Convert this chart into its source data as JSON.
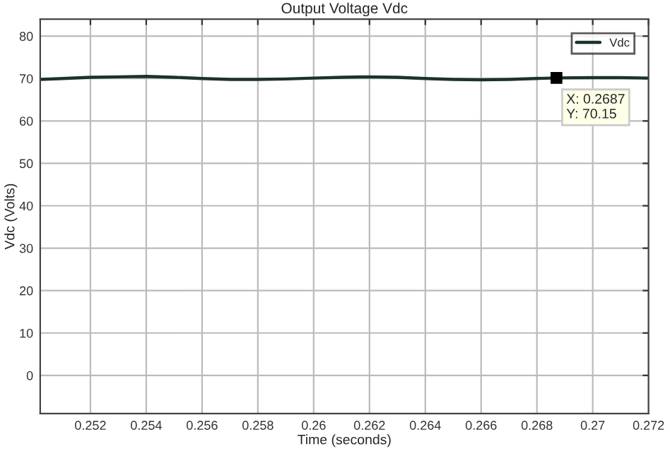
{
  "chart_data": {
    "type": "line",
    "title": "Output Voltage Vdc",
    "xlabel": "Time (seconds)",
    "ylabel": "Vdc (Volts)",
    "x": [
      0.2502,
      0.251,
      0.252,
      0.253,
      0.254,
      0.255,
      0.256,
      0.257,
      0.258,
      0.259,
      0.26,
      0.261,
      0.262,
      0.263,
      0.264,
      0.265,
      0.266,
      0.267,
      0.2687,
      0.27,
      0.271,
      0.272
    ],
    "series": [
      {
        "name": "Vdc",
        "color": "#1c3328",
        "values": [
          69.8,
          70.0,
          70.3,
          70.4,
          70.5,
          70.3,
          70.0,
          69.8,
          69.8,
          69.9,
          70.1,
          70.3,
          70.4,
          70.3,
          70.0,
          69.8,
          69.7,
          69.8,
          70.15,
          70.2,
          70.2,
          70.1
        ]
      }
    ],
    "xlim": [
      0.2502,
      0.272
    ],
    "ylim": [
      -9,
      84
    ],
    "xticks": [
      0.252,
      0.254,
      0.256,
      0.258,
      0.26,
      0.262,
      0.264,
      0.266,
      0.268,
      0.27,
      0.272
    ],
    "yticks": [
      0,
      10,
      20,
      30,
      40,
      50,
      60,
      70,
      80
    ],
    "annotations": [
      {
        "text": "X: 0.2687\nY: 70.15",
        "x": 0.2687,
        "y": 70.15
      }
    ],
    "grid": true,
    "legend": "top right",
    "line_style": "solid",
    "marker": "none"
  }
}
